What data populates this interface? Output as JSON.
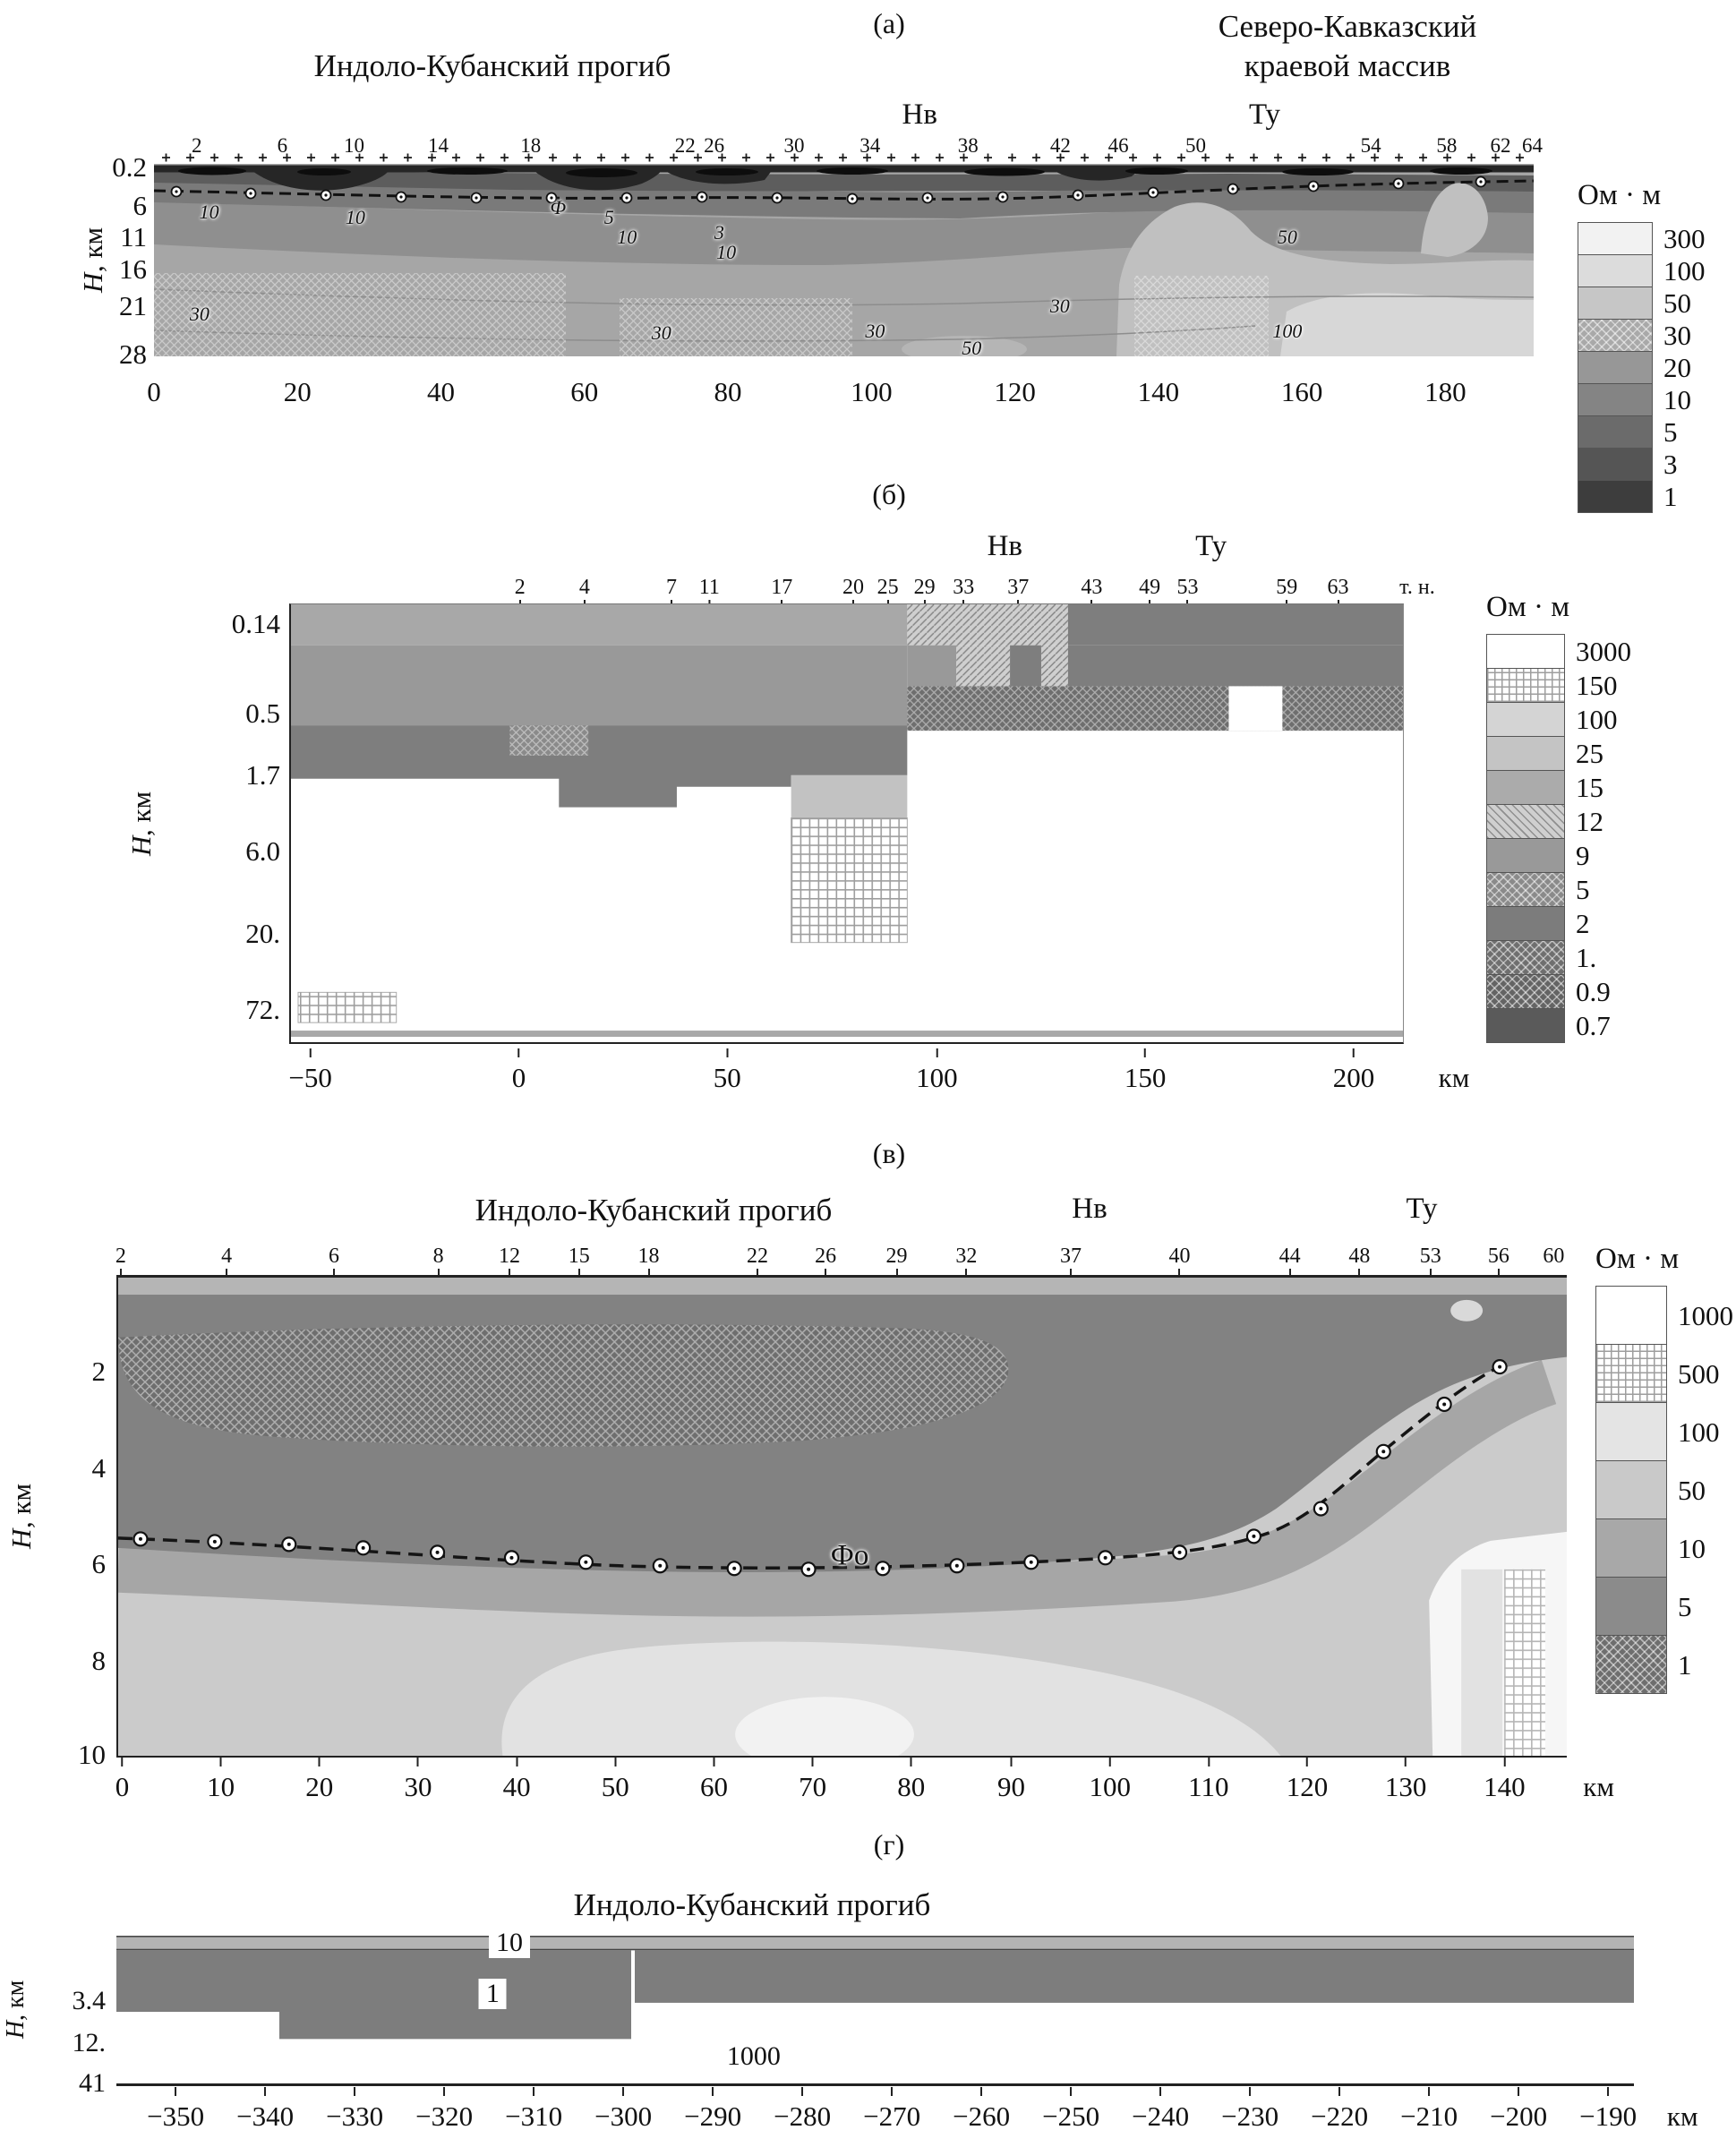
{
  "figure_unit": "Ом · м",
  "chart_data": [
    {
      "panel": "(а)",
      "type": "heatmap",
      "title_left": "Индоло-Кубанский прогиб",
      "title_right_1": "Северо-Кавказский",
      "title_right_2": "краевой массив",
      "zone_markers": [
        {
          "label": "Нв",
          "x": 0.555
        },
        {
          "label": "Ту",
          "x": 0.805
        }
      ],
      "top_stations": [
        {
          "label": "2",
          "x": 0.031
        },
        {
          "label": "6",
          "x": 0.093
        },
        {
          "label": "10",
          "x": 0.145
        },
        {
          "label": "14",
          "x": 0.206
        },
        {
          "label": "18",
          "x": 0.273
        },
        {
          "label": "22",
          "x": 0.385
        },
        {
          "label": "26",
          "x": 0.406
        },
        {
          "label": "30",
          "x": 0.464
        },
        {
          "label": "34",
          "x": 0.519
        },
        {
          "label": "38",
          "x": 0.59
        },
        {
          "label": "42",
          "x": 0.657
        },
        {
          "label": "46",
          "x": 0.699
        },
        {
          "label": "50",
          "x": 0.755
        },
        {
          "label": "54",
          "x": 0.882
        },
        {
          "label": "58",
          "x": 0.937
        },
        {
          "label": "62",
          "x": 0.976
        },
        {
          "label": "64",
          "x": 0.999
        }
      ],
      "y_axis": {
        "label_h": "H",
        "label_unit": ", км",
        "range_km": [
          0.2,
          28
        ],
        "ticks": [
          {
            "label": "0.2",
            "y": 0.02
          },
          {
            "label": "6",
            "y": 0.22
          },
          {
            "label": "11",
            "y": 0.38
          },
          {
            "label": "16",
            "y": 0.55
          },
          {
            "label": "21",
            "y": 0.74
          },
          {
            "label": "28",
            "y": 0.99
          }
        ]
      },
      "x_axis": {
        "range_km": [
          0,
          190
        ],
        "ticks": [
          {
            "label": "0",
            "x": 0.0
          },
          {
            "label": "20",
            "x": 0.104
          },
          {
            "label": "40",
            "x": 0.208
          },
          {
            "label": "60",
            "x": 0.312
          },
          {
            "label": "80",
            "x": 0.416
          },
          {
            "label": "100",
            "x": 0.52
          },
          {
            "label": "120",
            "x": 0.624
          },
          {
            "label": "140",
            "x": 0.728
          },
          {
            "label": "160",
            "x": 0.832
          },
          {
            "label": "180",
            "x": 0.936
          }
        ]
      },
      "legend": {
        "title": "Ом · м",
        "entries": [
          {
            "label": "300",
            "color": "#f2f2f2"
          },
          {
            "label": "100",
            "color": "#dcdcdc"
          },
          {
            "label": "50",
            "color": "#c6c6c6"
          },
          {
            "label": "30",
            "color": "#a9a9a9",
            "pattern": "crossl"
          },
          {
            "label": "20",
            "color": "#979797"
          },
          {
            "label": "10",
            "color": "#848484"
          },
          {
            "label": "5",
            "color": "#6b6b6b"
          },
          {
            "label": "3",
            "color": "#555555"
          },
          {
            "label": "1",
            "color": "#3d3d3d"
          }
        ]
      },
      "annotations": [
        {
          "label": "10",
          "x": 0.04,
          "y": 0.25
        },
        {
          "label": "10",
          "x": 0.146,
          "y": 0.28
        },
        {
          "label": "5",
          "x": 0.33,
          "y": 0.28
        },
        {
          "label": "Ф",
          "x": 0.293,
          "y": 0.23
        },
        {
          "label": "10",
          "x": 0.343,
          "y": 0.38
        },
        {
          "label": "3",
          "x": 0.41,
          "y": 0.36
        },
        {
          "label": "10",
          "x": 0.415,
          "y": 0.46
        },
        {
          "label": "30",
          "x": 0.033,
          "y": 0.78
        },
        {
          "label": "30",
          "x": 0.368,
          "y": 0.88
        },
        {
          "label": "30",
          "x": 0.523,
          "y": 0.87
        },
        {
          "label": "50",
          "x": 0.593,
          "y": 0.96
        },
        {
          "label": "30",
          "x": 0.657,
          "y": 0.74
        },
        {
          "label": "50",
          "x": 0.822,
          "y": 0.38
        },
        {
          "label": "100",
          "x": 0.822,
          "y": 0.87
        }
      ]
    },
    {
      "panel": "(б)",
      "type": "heatmap",
      "zone_markers": [
        {
          "label": "Нв",
          "x": 0.642
        },
        {
          "label": "Ту",
          "x": 0.827
        }
      ],
      "top_stations": [
        {
          "label": "2",
          "x": 0.207
        },
        {
          "label": "4",
          "x": 0.265
        },
        {
          "label": "7",
          "x": 0.343
        },
        {
          "label": "11",
          "x": 0.377
        },
        {
          "label": "17",
          "x": 0.442
        },
        {
          "label": "20",
          "x": 0.506
        },
        {
          "label": "25",
          "x": 0.537
        },
        {
          "label": "29",
          "x": 0.57
        },
        {
          "label": "33",
          "x": 0.605
        },
        {
          "label": "37",
          "x": 0.654
        },
        {
          "label": "43",
          "x": 0.72
        },
        {
          "label": "49",
          "x": 0.772
        },
        {
          "label": "53",
          "x": 0.806
        },
        {
          "label": "59",
          "x": 0.895
        },
        {
          "label": "63",
          "x": 0.941
        },
        {
          "label": "т. н.",
          "x": 1.012
        }
      ],
      "y_axis": {
        "label_h": "H",
        "label_unit": ", км",
        "range_km": [
          0.14,
          72
        ],
        "ticks": [
          {
            "label": "0.14",
            "y": 0.047
          },
          {
            "label": "0.5",
            "y": 0.25
          },
          {
            "label": "1.7",
            "y": 0.39
          },
          {
            "label": "6.0",
            "y": 0.5625
          },
          {
            "label": "20.",
            "y": 0.75
          },
          {
            "label": "72.",
            "y": 0.922
          }
        ]
      },
      "x_axis": {
        "range_km": [
          -55,
          212
        ],
        "ticks": [
          {
            "label": "−50",
            "x": 0.019
          },
          {
            "label": "0",
            "x": 0.206
          },
          {
            "label": "50",
            "x": 0.393
          },
          {
            "label": "100",
            "x": 0.581
          },
          {
            "label": "150",
            "x": 0.768
          },
          {
            "label": "200",
            "x": 0.955
          },
          {
            "label": "км",
            "x": 1.045
          }
        ]
      },
      "legend": {
        "title": "Ом · м",
        "entries": [
          {
            "label": "3000",
            "color": "#ffffff"
          },
          {
            "label": "150",
            "color": "#ffffff",
            "pattern": "grid"
          },
          {
            "label": "100",
            "color": "#d4d4d4"
          },
          {
            "label": "25",
            "color": "#c4c4c4"
          },
          {
            "label": "15",
            "color": "#ababab"
          },
          {
            "label": "12",
            "color": "#cfcfcf",
            "pattern": "diag"
          },
          {
            "label": "9",
            "color": "#999999"
          },
          {
            "label": "5",
            "color": "#8a8a8a",
            "pattern": "crossl"
          },
          {
            "label": "2",
            "color": "#7c7c7c"
          },
          {
            "label": "1.",
            "color": "#6f6f6f",
            "pattern": "crossl"
          },
          {
            "label": "0.9",
            "color": "#646464",
            "pattern": "crossl"
          },
          {
            "label": "0.7",
            "color": "#5a5a5a"
          }
        ]
      },
      "annotations": []
    },
    {
      "panel": "(в)",
      "type": "heatmap",
      "title": "Индоло-Кубанский прогиб",
      "zone_markers": [
        {
          "label": "Нв",
          "x": 0.671
        },
        {
          "label": "Ту",
          "x": 0.9
        }
      ],
      "top_stations": [
        {
          "label": "2",
          "x": 0.003
        },
        {
          "label": "4",
          "x": 0.076
        },
        {
          "label": "6",
          "x": 0.15
        },
        {
          "label": "8",
          "x": 0.222
        },
        {
          "label": "12",
          "x": 0.271
        },
        {
          "label": "15",
          "x": 0.319
        },
        {
          "label": "18",
          "x": 0.367
        },
        {
          "label": "22",
          "x": 0.442
        },
        {
          "label": "26",
          "x": 0.489
        },
        {
          "label": "29",
          "x": 0.538
        },
        {
          "label": "32",
          "x": 0.586
        },
        {
          "label": "37",
          "x": 0.658
        },
        {
          "label": "40",
          "x": 0.733
        },
        {
          "label": "44",
          "x": 0.809
        },
        {
          "label": "48",
          "x": 0.857
        },
        {
          "label": "53",
          "x": 0.906
        },
        {
          "label": "56",
          "x": 0.953
        },
        {
          "label": "60",
          "x": 0.991
        }
      ],
      "y_axis": {
        "label_h": "H",
        "label_unit": ", км",
        "range_km": [
          0,
          10
        ],
        "ticks": [
          {
            "label": "2",
            "y": 0.2
          },
          {
            "label": "4",
            "y": 0.4
          },
          {
            "label": "6",
            "y": 0.6
          },
          {
            "label": "8",
            "y": 0.8
          },
          {
            "label": "10",
            "y": 0.995
          }
        ]
      },
      "x_axis": {
        "range_km": [
          0,
          147
        ],
        "ticks": [
          {
            "label": "0",
            "x": 0.004
          },
          {
            "label": "10",
            "x": 0.072
          },
          {
            "label": "20",
            "x": 0.14
          },
          {
            "label": "30",
            "x": 0.208
          },
          {
            "label": "40",
            "x": 0.276
          },
          {
            "label": "50",
            "x": 0.344
          },
          {
            "label": "60",
            "x": 0.412
          },
          {
            "label": "70",
            "x": 0.48
          },
          {
            "label": "80",
            "x": 0.548
          },
          {
            "label": "90",
            "x": 0.617
          },
          {
            "label": "100",
            "x": 0.685
          },
          {
            "label": "110",
            "x": 0.753
          },
          {
            "label": "120",
            "x": 0.821
          },
          {
            "label": "130",
            "x": 0.889
          },
          {
            "label": "140",
            "x": 0.957
          },
          {
            "label": "км",
            "x": 1.022
          }
        ]
      },
      "legend": {
        "title": "Ом · м",
        "entries": [
          {
            "label": "1000",
            "color": "#ffffff"
          },
          {
            "label": "500",
            "color": "#ffffff",
            "pattern": "grid"
          },
          {
            "label": "100",
            "color": "#e4e4e4"
          },
          {
            "label": "50",
            "color": "#c9c9c9"
          },
          {
            "label": "10",
            "color": "#a8a8a8"
          },
          {
            "label": "5",
            "color": "#8b8b8b"
          },
          {
            "label": "1",
            "color": "#6e6e6e",
            "pattern": "crossl"
          }
        ]
      },
      "annotations": [
        {
          "label": "Фо",
          "x": 0.505,
          "y": 0.585
        }
      ]
    },
    {
      "panel": "(г)",
      "type": "heatmap",
      "title": "Индоло-Кубанский прогиб",
      "y_axis": {
        "label_h": "H",
        "label_unit": ", км",
        "range_km": [
          0,
          41
        ],
        "ticks": [
          {
            "label": "3.4",
            "y": 0.45
          },
          {
            "label": "12.",
            "y": 0.72
          },
          {
            "label": "41",
            "y": 0.985
          }
        ]
      },
      "x_axis": {
        "range_km": [
          -355,
          -185
        ],
        "ticks": [
          {
            "label": "−350",
            "x": 0.039
          },
          {
            "label": "−340",
            "x": 0.098
          },
          {
            "label": "−330",
            "x": 0.157
          },
          {
            "label": "−320",
            "x": 0.216
          },
          {
            "label": "−310",
            "x": 0.275
          },
          {
            "label": "−300",
            "x": 0.334
          },
          {
            "label": "−290",
            "x": 0.393
          },
          {
            "label": "−280",
            "x": 0.452
          },
          {
            "label": "−270",
            "x": 0.511
          },
          {
            "label": "−260",
            "x": 0.57
          },
          {
            "label": "−250",
            "x": 0.629
          },
          {
            "label": "−240",
            "x": 0.688
          },
          {
            "label": "−230",
            "x": 0.747
          },
          {
            "label": "−220",
            "x": 0.806
          },
          {
            "label": "−210",
            "x": 0.865
          },
          {
            "label": "−200",
            "x": 0.924
          },
          {
            "label": "−190",
            "x": 0.983
          },
          {
            "label": "км",
            "x": 1.032
          }
        ]
      },
      "annotations": [
        {
          "label": "10",
          "x": 0.259,
          "y": 0.07
        },
        {
          "label": "1",
          "x": 0.248,
          "y": 0.4
        },
        {
          "label": "1000",
          "x": 0.42,
          "y": 0.81
        }
      ]
    }
  ]
}
